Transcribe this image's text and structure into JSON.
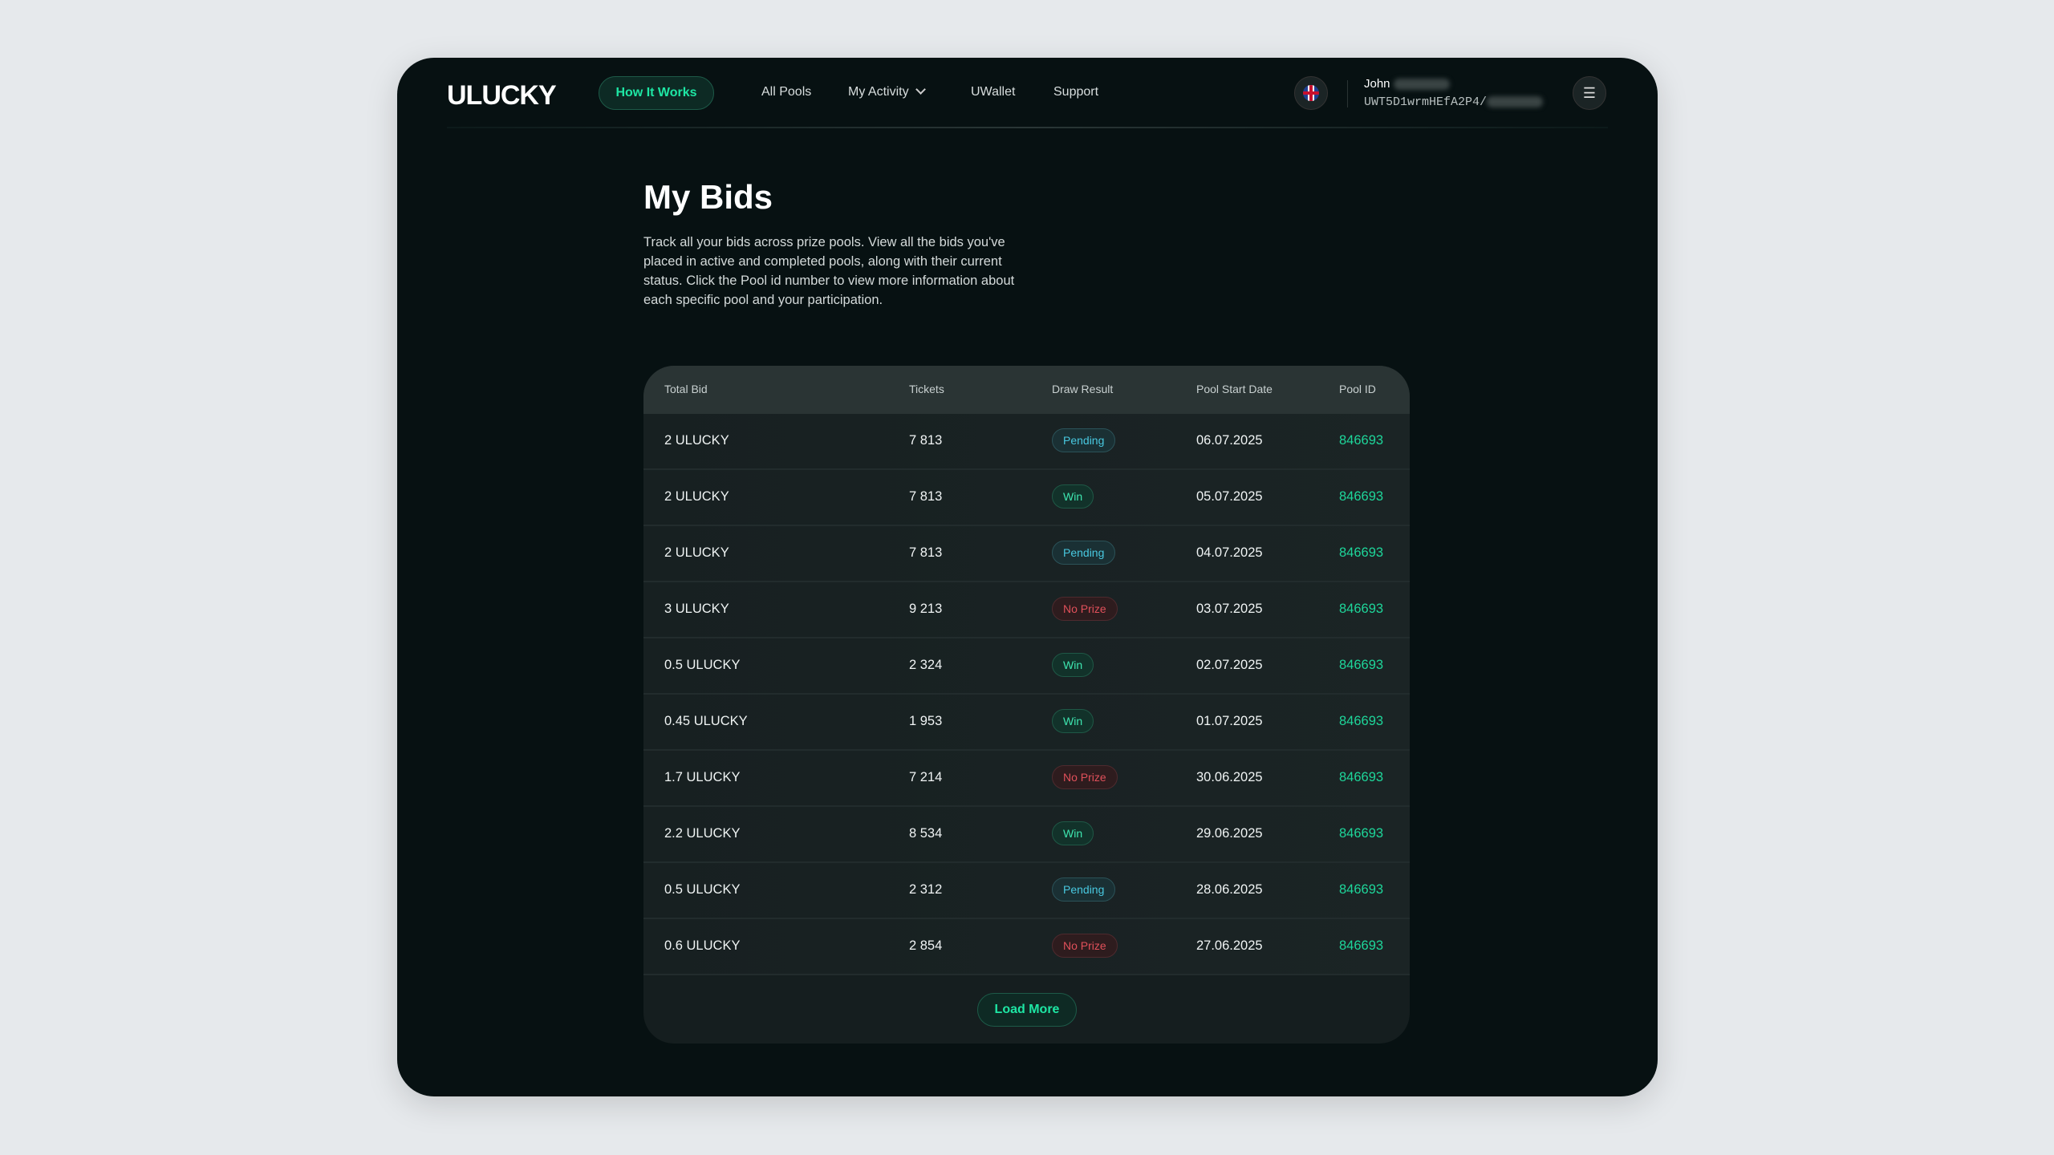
{
  "nav": {
    "logo": "ULUCKY",
    "how_it_works": "How It Works",
    "all_pools": "All Pools",
    "my_activity": "My Activity",
    "uwallet": "UWallet",
    "support": "Support"
  },
  "user": {
    "name": "John",
    "address": "UWT5D1wrmHEfA2P4/"
  },
  "page": {
    "title": "My Bids",
    "description": "Track all your bids across prize pools. View all the bids you've placed in active and completed pools, along with their current status. Click the Pool id number to view more information about each specific pool and your participation."
  },
  "table": {
    "headers": [
      "Total Bid",
      "Tickets",
      "Draw Result",
      "Pool Start Date",
      "Pool ID"
    ],
    "rows": [
      {
        "bid": "2 ULUCKY",
        "tickets": "7 813",
        "result": "Pending",
        "date": "06.07.2025",
        "pool": "846693"
      },
      {
        "bid": "2 ULUCKY",
        "tickets": "7 813",
        "result": "Win",
        "date": "05.07.2025",
        "pool": "846693"
      },
      {
        "bid": "2 ULUCKY",
        "tickets": "7 813",
        "result": "Pending",
        "date": "04.07.2025",
        "pool": "846693"
      },
      {
        "bid": "3 ULUCKY",
        "tickets": "9 213",
        "result": "No Prize",
        "date": "03.07.2025",
        "pool": "846693"
      },
      {
        "bid": "0.5 ULUCKY",
        "tickets": "2 324",
        "result": "Win",
        "date": "02.07.2025",
        "pool": "846693"
      },
      {
        "bid": "0.45 ULUCKY",
        "tickets": "1 953",
        "result": "Win",
        "date": "01.07.2025",
        "pool": "846693"
      },
      {
        "bid": "1.7 ULUCKY",
        "tickets": "7 214",
        "result": "No Prize",
        "date": "30.06.2025",
        "pool": "846693"
      },
      {
        "bid": "2.2 ULUCKY",
        "tickets": "8 534",
        "result": "Win",
        "date": "29.06.2025",
        "pool": "846693"
      },
      {
        "bid": "0.5 ULUCKY",
        "tickets": "2 312",
        "result": "Pending",
        "date": "28.06.2025",
        "pool": "846693"
      },
      {
        "bid": "0.6 ULUCKY",
        "tickets": "2 854",
        "result": "No Prize",
        "date": "27.06.2025",
        "pool": "846693"
      }
    ],
    "load_more": "Load More"
  },
  "colors": {
    "accent": "#1ee6a4",
    "pending": "#48c8e0",
    "no_prize": "#e0505a",
    "background": "#071112"
  }
}
